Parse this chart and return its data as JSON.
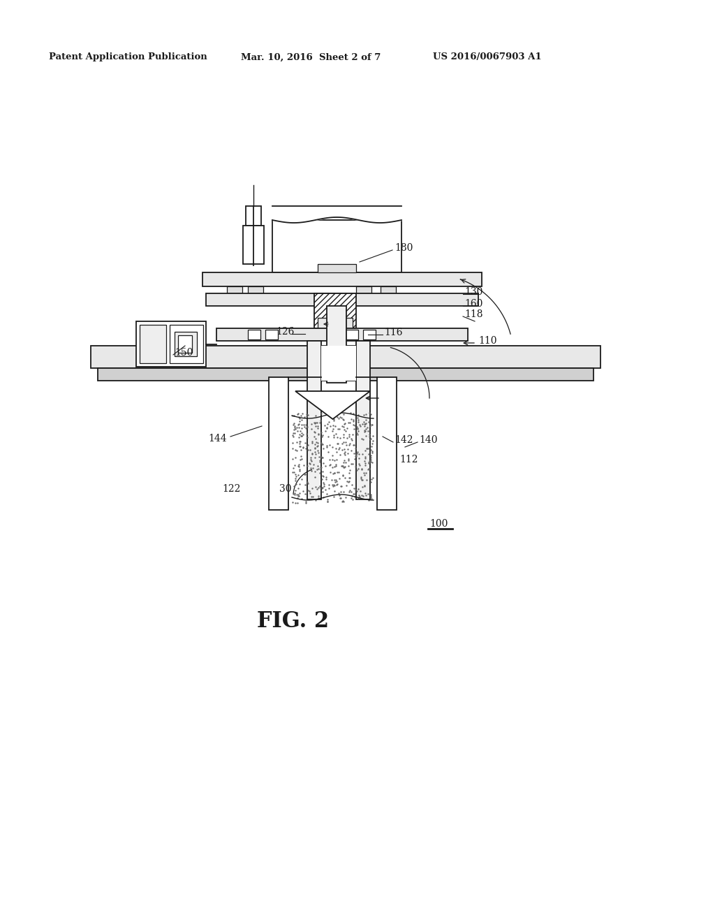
{
  "background_color": "#ffffff",
  "header_left": "Patent Application Publication",
  "header_center": "Mar. 10, 2016  Sheet 2 of 7",
  "header_right": "US 2016/0067903 A1",
  "figure_label": "FIG. 2",
  "line_color": "#1a1a1a",
  "label_fontsize": 10,
  "header_fontsize": 9.5,
  "fig2_fontsize": 22
}
